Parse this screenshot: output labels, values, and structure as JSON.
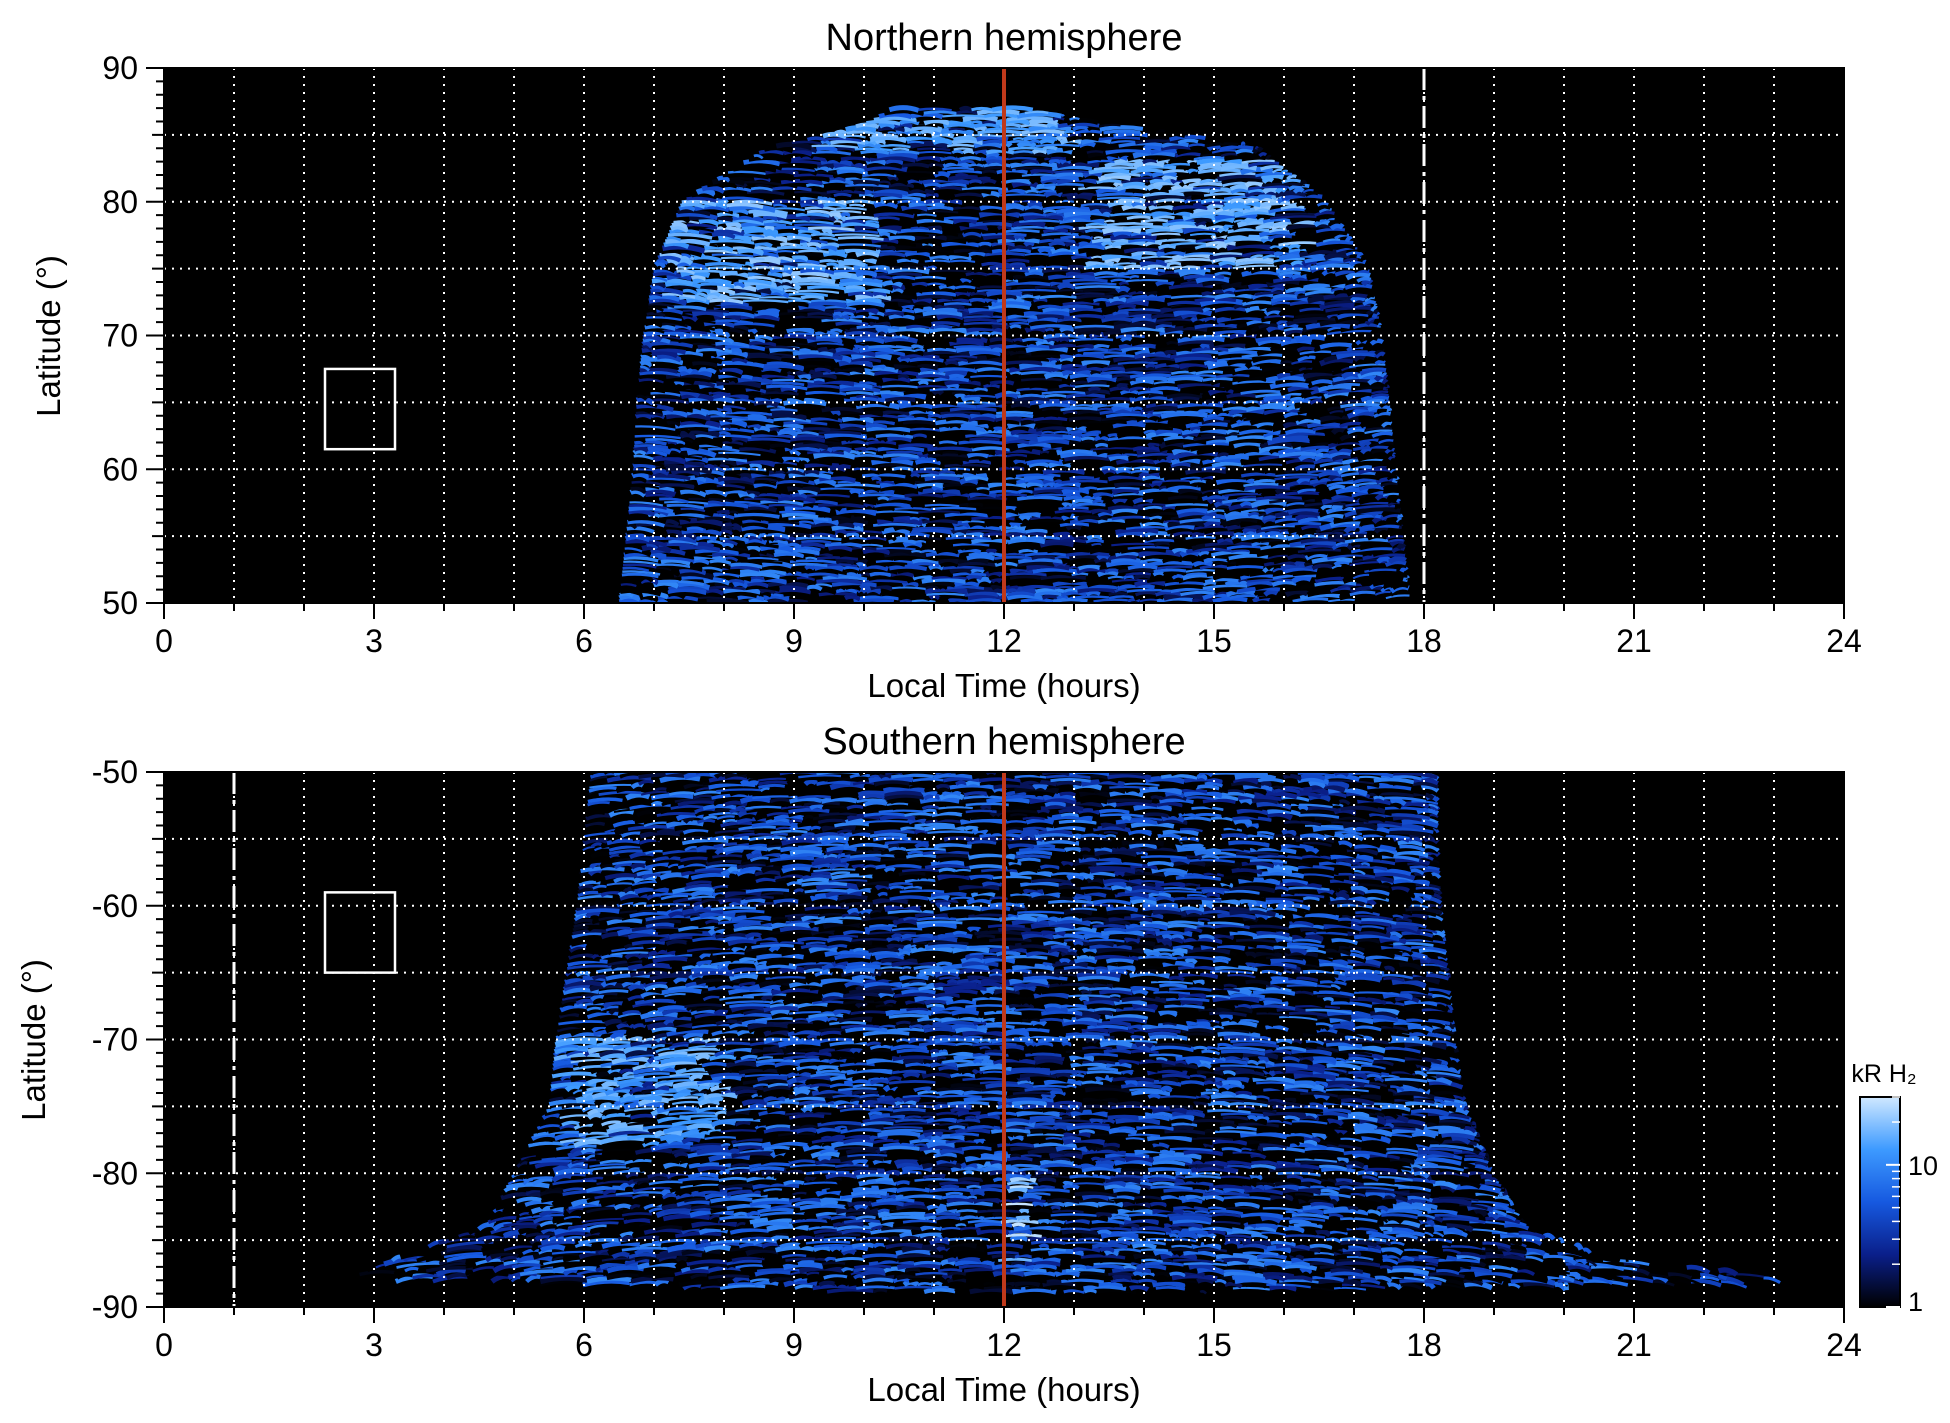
{
  "chart_data": [
    {
      "type": "heatmap",
      "title": "Northern hemisphere",
      "xlabel": "Local Time (hours)",
      "ylabel": "Latitude (°)",
      "xlim": [
        0,
        24
      ],
      "ylim": [
        50,
        90
      ],
      "xticks": [
        0,
        3,
        6,
        9,
        12,
        15,
        18,
        21,
        24
      ],
      "yticks": [
        50,
        60,
        70,
        80,
        90
      ],
      "grid": true,
      "grid_x": [
        1,
        2,
        3,
        4,
        5,
        6,
        7,
        8,
        9,
        10,
        11,
        12,
        13,
        14,
        15,
        16,
        17,
        18,
        19,
        20,
        21,
        22,
        23
      ],
      "grid_y": [
        55,
        60,
        65,
        70,
        75,
        80,
        85
      ],
      "reference_line_x": 12,
      "terminator_line_x": 18,
      "box": {
        "x": [
          2.3,
          3.3
        ],
        "y": [
          61.5,
          67.5
        ]
      },
      "coverage": {
        "lat_profile": [
          50,
          55,
          60,
          65,
          70,
          75,
          80,
          84,
          85,
          86,
          87
        ],
        "lt_start": [
          6.5,
          6.6,
          6.7,
          6.75,
          6.85,
          7.0,
          7.4,
          8.6,
          9.5,
          10.1,
          10.4
        ],
        "lt_end": [
          17.8,
          17.7,
          17.6,
          17.5,
          17.4,
          17.2,
          16.6,
          15.6,
          14.5,
          13.2,
          12.3
        ]
      },
      "bright_bands": [
        {
          "lt": [
            7.2,
            10.2
          ],
          "lat": [
            72.5,
            80
          ],
          "level": 18
        },
        {
          "lt": [
            13.3,
            16.2
          ],
          "lat": [
            75,
            83
          ],
          "level": 18
        },
        {
          "lt": [
            9.5,
            13.0
          ],
          "lat": [
            83.5,
            87
          ],
          "level": 16
        }
      ],
      "colorscale": [
        "#000000",
        "#0a1f8a",
        "#1659e0",
        "#3d9aff",
        "#cfe8ff"
      ],
      "value_range": [
        1,
        30
      ]
    },
    {
      "type": "heatmap",
      "title": "Southern hemisphere",
      "xlabel": "Local Time (hours)",
      "ylabel": "Latitude (°)",
      "xlim": [
        0,
        24
      ],
      "ylim": [
        -90,
        -50
      ],
      "xticks": [
        0,
        3,
        6,
        9,
        12,
        15,
        18,
        21,
        24
      ],
      "yticks": [
        -90,
        -80,
        -70,
        -60,
        -50
      ],
      "grid": true,
      "grid_x": [
        1,
        2,
        3,
        4,
        5,
        6,
        7,
        8,
        9,
        10,
        11,
        12,
        13,
        14,
        15,
        16,
        17,
        18,
        19,
        20,
        21,
        22,
        23
      ],
      "grid_y": [
        -85,
        -80,
        -75,
        -70,
        -65,
        -60,
        -55
      ],
      "reference_line_x": 12,
      "terminator_line_x": 1,
      "box": {
        "x": [
          2.3,
          3.3
        ],
        "y": [
          -65,
          -59
        ]
      },
      "coverage": {
        "lat_profile": [
          -50,
          -55,
          -60,
          -65,
          -70,
          -75,
          -80,
          -84,
          -86,
          -88,
          -89
        ],
        "lt_start": [
          6.1,
          6.0,
          5.9,
          5.75,
          5.6,
          5.5,
          5.0,
          4.6,
          3.5,
          2.6,
          10.5
        ],
        "lt_end": [
          18.2,
          18.2,
          18.25,
          18.35,
          18.45,
          18.6,
          19.0,
          19.5,
          20.5,
          23.5,
          13.6
        ]
      },
      "bright_bands": [
        {
          "lt": [
            5.8,
            8.0
          ],
          "lat": [
            -78,
            -70
          ],
          "level": 16
        },
        {
          "lt": [
            12.1,
            12.3
          ],
          "lat": [
            -89,
            -80
          ],
          "level": 25
        }
      ],
      "colorscale": [
        "#000000",
        "#0a1f8a",
        "#1659e0",
        "#3d9aff",
        "#cfe8ff"
      ],
      "value_range": [
        1,
        30
      ]
    }
  ],
  "colorbar": {
    "label": "kR H₂",
    "ticks": [
      "10",
      "1"
    ],
    "tick_values": [
      10,
      1
    ],
    "range": [
      1,
      30
    ],
    "colors": [
      "#000000",
      "#0a1f8a",
      "#1659e0",
      "#3d9aff",
      "#cfe8ff"
    ]
  },
  "colors": {
    "reference_line": "#c0391b",
    "grid": "#ffffff",
    "background": "#000000"
  }
}
